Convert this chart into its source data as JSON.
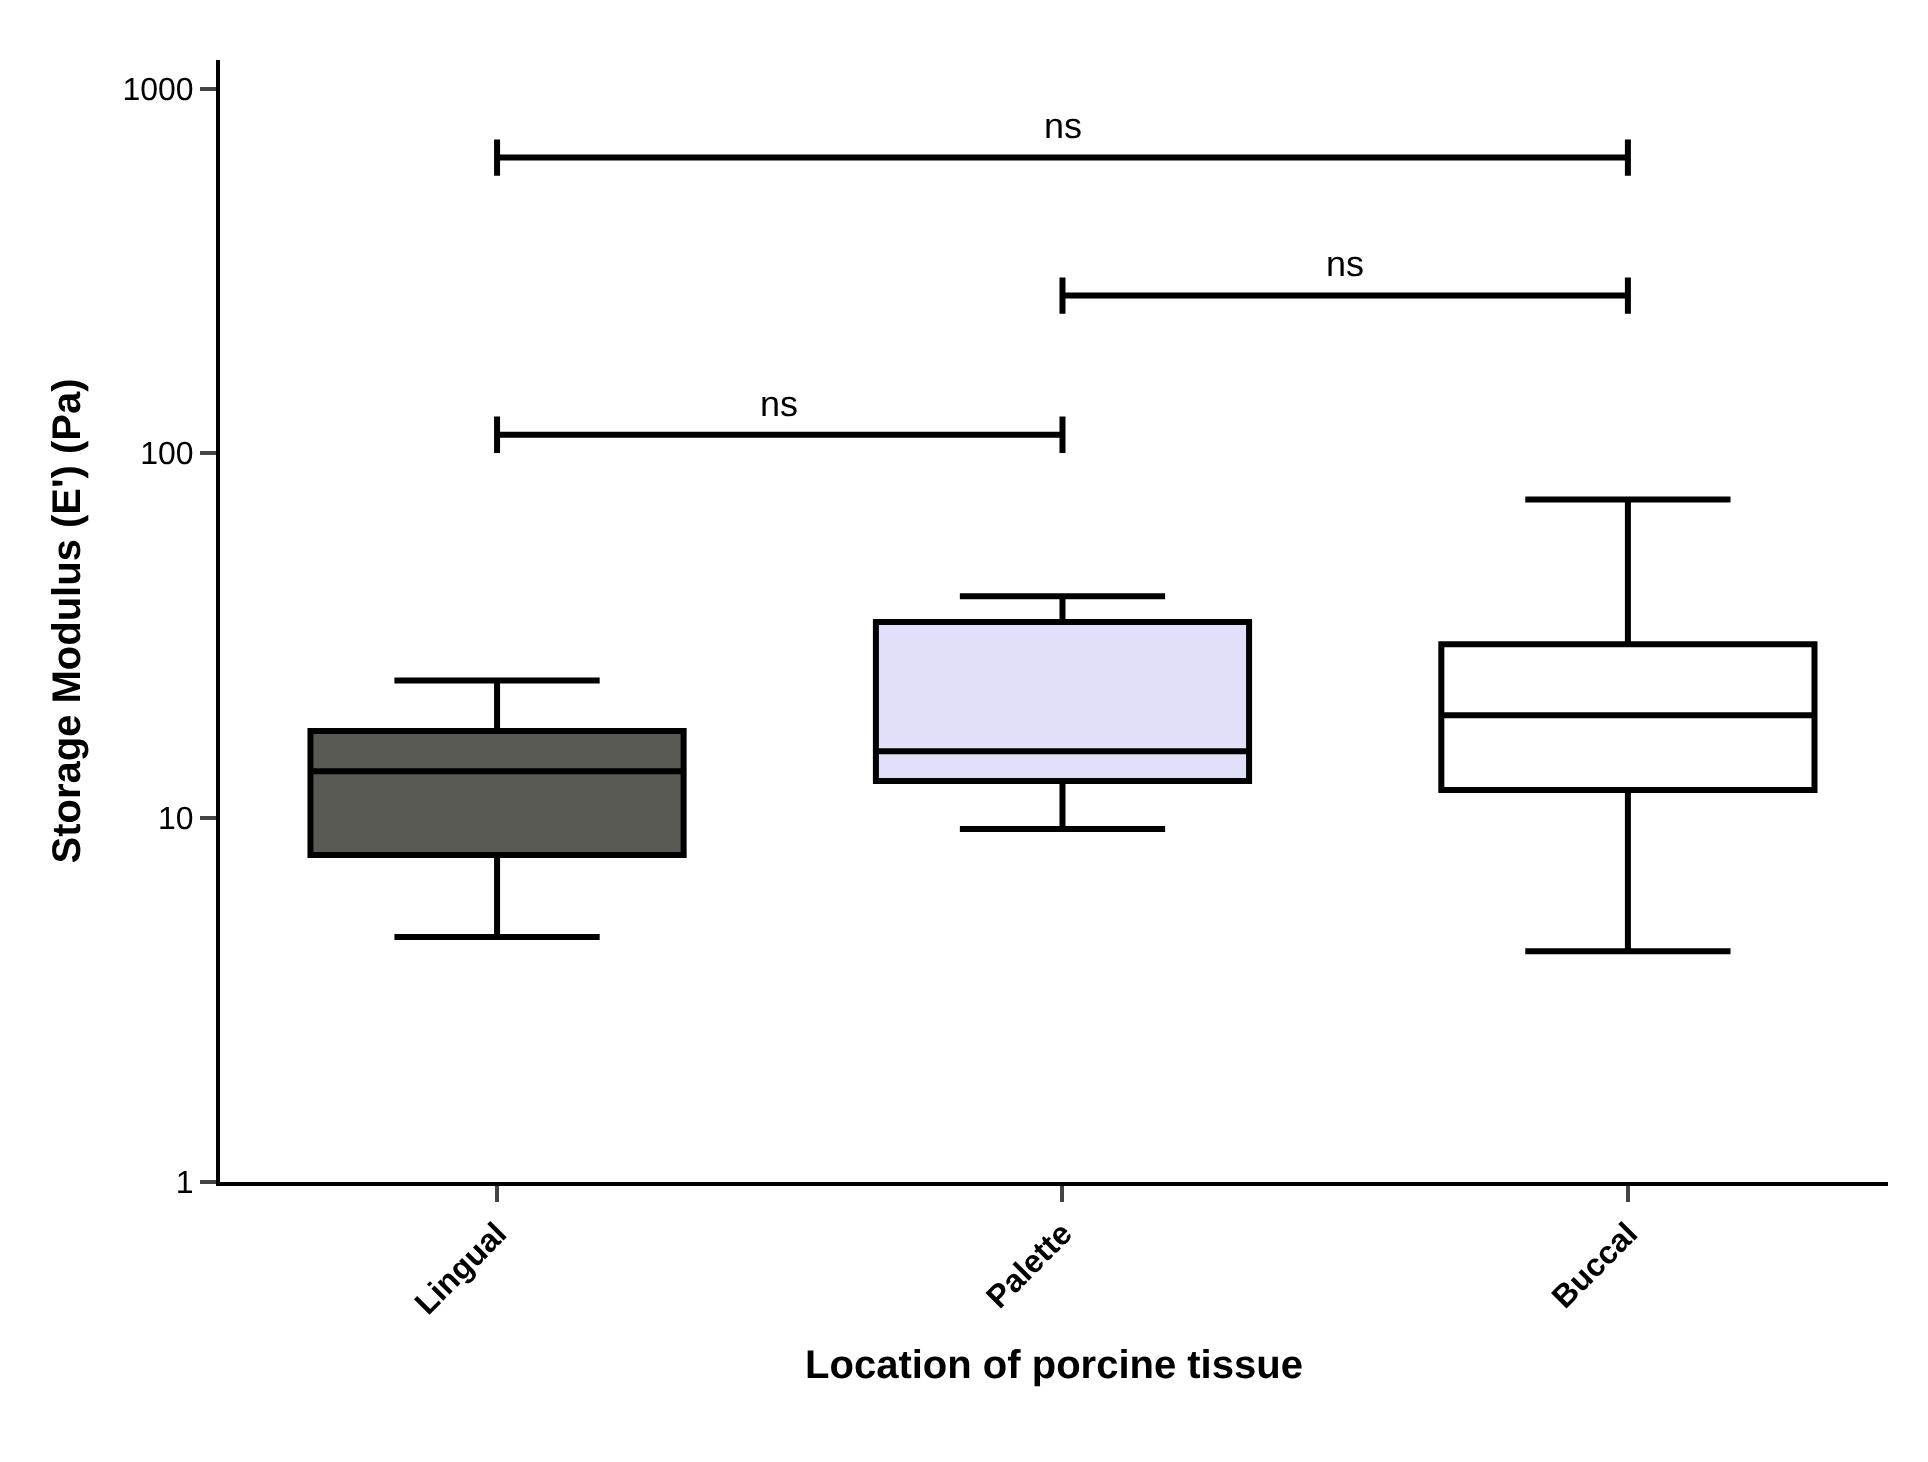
{
  "chart_data": {
    "type": "box",
    "xlabel": "Location of porcine tissue",
    "ylabel": "Storage Modulus (E') (Pa)",
    "categories": [
      "Lingual",
      "Palette",
      "Buccal"
    ],
    "boxes": [
      {
        "low": 4.7,
        "q1": 7.9,
        "median": 13.4,
        "q3": 17.3,
        "high": 23.8
      },
      {
        "low": 9.3,
        "q1": 12.6,
        "median": 15.2,
        "q3": 34.4,
        "high": 40.5
      },
      {
        "low": 4.3,
        "q1": 11.9,
        "median": 19.1,
        "q3": 29.9,
        "high": 74.6
      }
    ],
    "colors": [
      "#5a5a55",
      "#e0e0fa",
      "#ffffff"
    ],
    "log": "y",
    "ylim": [
      1,
      1200
    ],
    "yticks": [
      1,
      10,
      100,
      1000
    ],
    "annotations": [
      "ns",
      "ns",
      "ns"
    ],
    "legend": false
  }
}
